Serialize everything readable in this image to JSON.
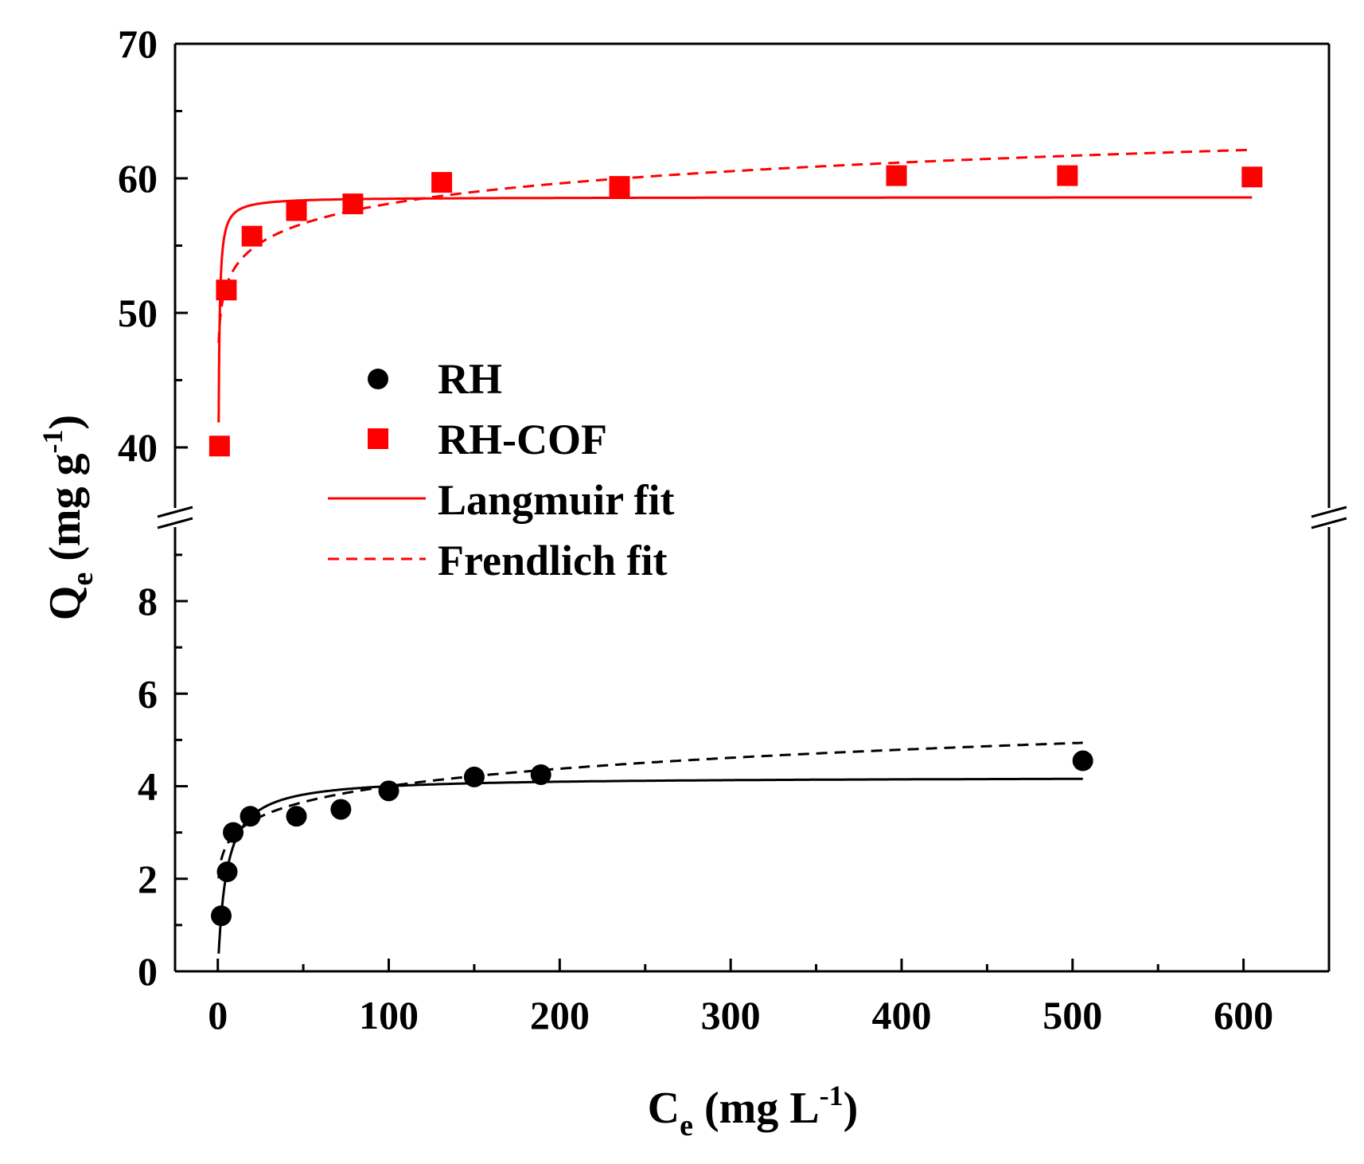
{
  "chart_data": {
    "type": "scatter",
    "title": "",
    "xlabel": {
      "main": "C",
      "sub": "e",
      "unit_open": " (mg L",
      "sup": "-1",
      "unit_close": ")"
    },
    "ylabel": {
      "main": "Q",
      "sub": "e",
      "unit_open": " (mg g",
      "sup": "-1",
      "unit_close": ")"
    },
    "xlim": [
      -25,
      650
    ],
    "x_ticks": [
      0,
      100,
      200,
      300,
      400,
      500,
      600
    ],
    "y_axis_break": true,
    "y_lower_segment": {
      "ylim": [
        0,
        9.6
      ],
      "ticks": [
        0,
        2,
        4,
        6,
        8
      ]
    },
    "y_upper_segment": {
      "ylim": [
        35.5,
        70
      ],
      "ticks": [
        40,
        50,
        60,
        70
      ]
    },
    "legend": {
      "position": "center-left",
      "entries": [
        {
          "label": "RH",
          "marker": "circle"
        },
        {
          "label": "RH-COF",
          "marker": "square"
        },
        {
          "label": "Langmuir fit",
          "line": "solid"
        },
        {
          "label": "Frendlich fit",
          "line": "dashed"
        }
      ]
    },
    "series": [
      {
        "name": "RH",
        "color": "#000000",
        "segment": "lower",
        "x": [
          2,
          5.5,
          9,
          19,
          46,
          72,
          100,
          150,
          189,
          506
        ],
        "y": [
          1.2,
          2.15,
          3.0,
          3.35,
          3.35,
          3.5,
          3.9,
          4.2,
          4.25,
          4.55
        ],
        "langmuir": {
          "qmax": 4.2,
          "KL": 0.2
        },
        "freundlich": {
          "KF": 2.2,
          "n": 7.7
        }
      },
      {
        "name": "RH-COF",
        "color": "#ff0000",
        "segment": "upper",
        "x": [
          1,
          5,
          20,
          46,
          79,
          131,
          235,
          397,
          497,
          605
        ],
        "y": [
          40.1,
          51.7,
          55.7,
          57.6,
          58.1,
          59.7,
          59.4,
          60.2,
          60.2,
          60.1
        ],
        "langmuir": {
          "qmax": 58.6,
          "KL": 5.0
        },
        "freundlich": {
          "KF": 49.0,
          "n": 27
        }
      }
    ]
  }
}
